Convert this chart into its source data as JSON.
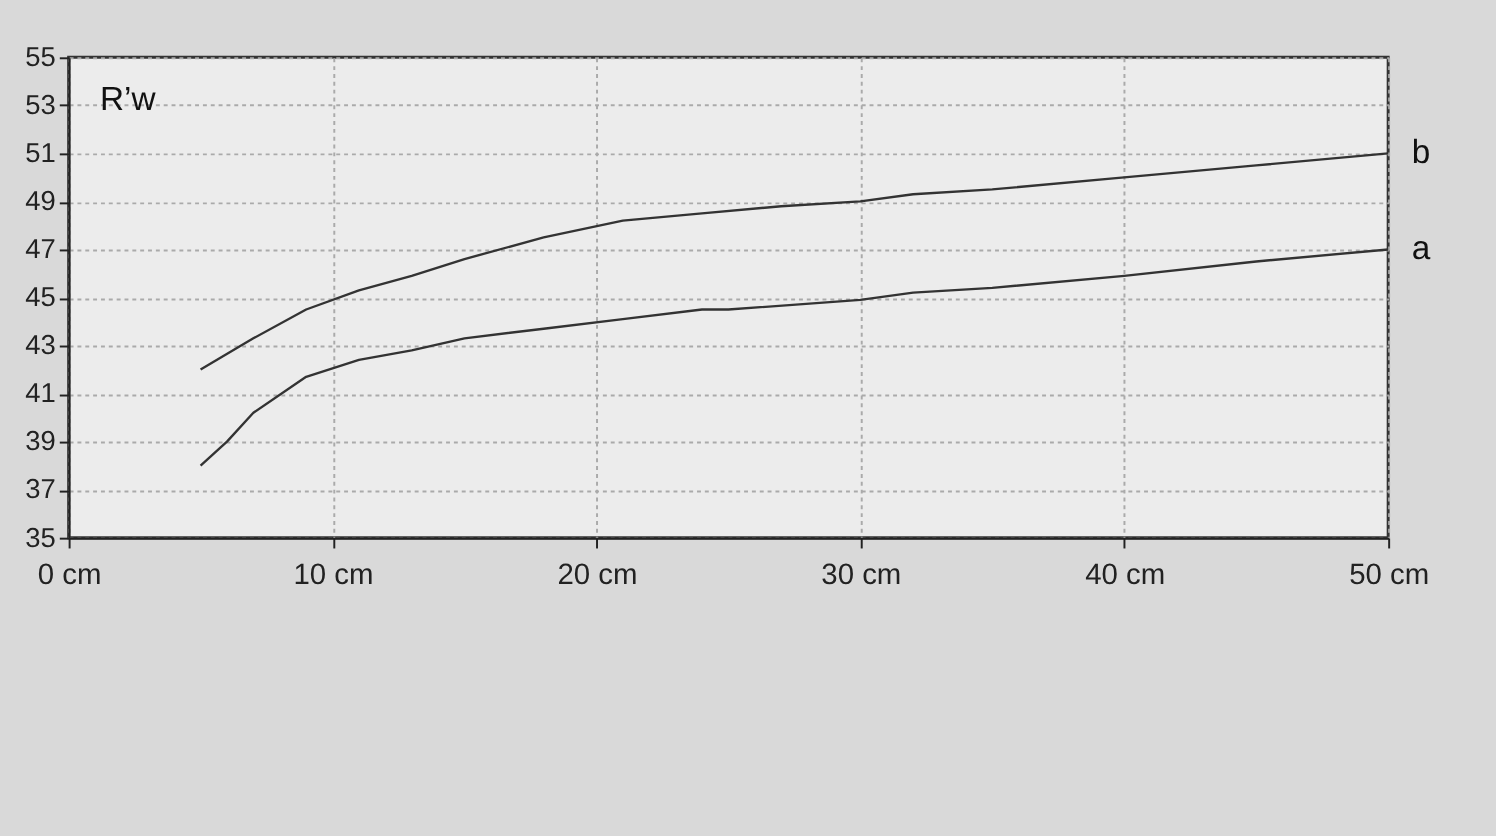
{
  "chart_data": {
    "type": "line",
    "ylabel": "R’w",
    "xlim": [
      0,
      50
    ],
    "xticks": [
      {
        "value": 0,
        "label": "0 cm"
      },
      {
        "value": 10,
        "label": "10 cm"
      },
      {
        "value": 20,
        "label": "20 cm"
      },
      {
        "value": 30,
        "label": "30 cm"
      },
      {
        "value": 40,
        "label": "40 cm"
      },
      {
        "value": 50,
        "label": "50 cm"
      }
    ],
    "ylim": [
      35,
      55
    ],
    "yticks": [
      35,
      37,
      39,
      41,
      43,
      45,
      47,
      49,
      51,
      53,
      55
    ],
    "grid": true,
    "legend": false,
    "line_style": "solid",
    "series": [
      {
        "name": "a",
        "color": "#333333",
        "x": [
          5,
          6,
          7,
          9,
          11,
          13,
          15,
          18,
          21,
          24,
          25,
          30,
          32,
          35,
          40,
          45,
          50
        ],
        "values": [
          38,
          39,
          40.2,
          41.7,
          42.4,
          42.8,
          43.3,
          43.7,
          44.1,
          44.5,
          44.5,
          44.9,
          45.2,
          45.4,
          45.9,
          46.5,
          47
        ]
      },
      {
        "name": "b",
        "color": "#333333",
        "x": [
          5,
          7,
          9,
          11,
          13,
          15,
          18,
          21,
          24,
          27,
          30,
          32,
          35,
          40,
          45,
          50
        ],
        "values": [
          42,
          43.3,
          44.5,
          45.3,
          45.9,
          46.6,
          47.5,
          48.2,
          48.5,
          48.8,
          49,
          49.3,
          49.5,
          50,
          50.5,
          51
        ]
      }
    ]
  }
}
